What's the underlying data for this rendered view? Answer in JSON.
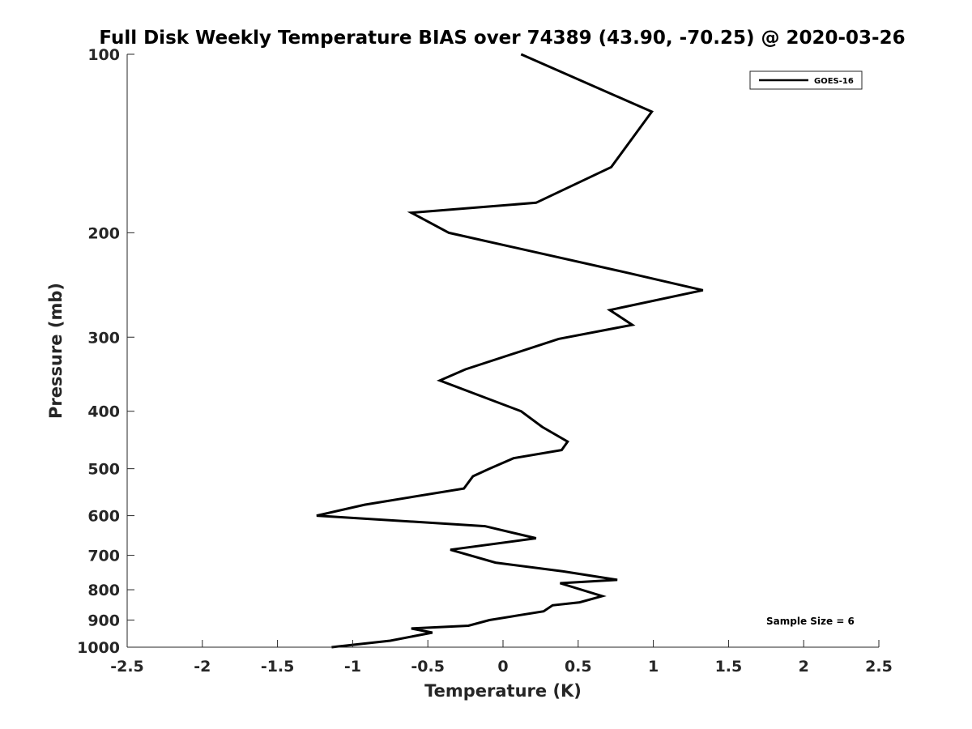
{
  "chart_data": {
    "type": "line",
    "title": "Full Disk Weekly Temperature BIAS over 74389 (43.90, -70.25) @ 2020-03-26",
    "xlabel": "Temperature (K)",
    "ylabel": "Pressure (mb)",
    "xlim": [
      -2.5,
      2.5
    ],
    "ylim": [
      100,
      1000
    ],
    "y_scale": "log",
    "y_reversed": true,
    "grid": false,
    "x_ticks": [
      -2.5,
      -2,
      -1.5,
      -1,
      -0.5,
      0,
      0.5,
      1,
      1.5,
      2,
      2.5
    ],
    "x_tick_labels": [
      "-2.5",
      "-2",
      "-1.5",
      "-1",
      "-0.5",
      "0",
      "0.5",
      "1",
      "1.5",
      "2",
      "2.5"
    ],
    "y_ticks": [
      100,
      200,
      300,
      400,
      500,
      600,
      700,
      800,
      900,
      1000
    ],
    "y_tick_labels": [
      "100",
      "200",
      "300",
      "400",
      "500",
      "600",
      "700",
      "800",
      "900",
      "1000"
    ],
    "legend": {
      "placement": "top-right",
      "entries": [
        "GOES-16"
      ]
    },
    "annotation": "Sample Size = 6",
    "line_color": "#000000",
    "series": [
      {
        "name": "GOES-16",
        "x": [
          0.12,
          0.99,
          0.72,
          0.22,
          -0.61,
          -0.36,
          0.84,
          1.33,
          0.71,
          0.86,
          0.37,
          -0.25,
          -0.42,
          0.12,
          0.26,
          0.43,
          0.39,
          0.07,
          -0.09,
          -0.2,
          -0.26,
          -0.92,
          -1.24,
          -0.12,
          0.22,
          -0.35,
          -0.05,
          0.4,
          0.76,
          0.38,
          0.66,
          0.51,
          0.33,
          0.27,
          -0.09,
          -0.23,
          -0.61,
          -0.47,
          -0.75,
          -1.14
        ],
        "y": [
          100,
          125,
          155,
          178,
          185,
          200,
          234,
          250,
          270,
          286,
          302,
          340,
          355,
          400,
          425,
          450,
          465,
          480,
          500,
          515,
          540,
          575,
          600,
          625,
          655,
          685,
          720,
          745,
          770,
          780,
          820,
          840,
          850,
          870,
          900,
          920,
          930,
          945,
          975,
          1000
        ]
      }
    ]
  }
}
